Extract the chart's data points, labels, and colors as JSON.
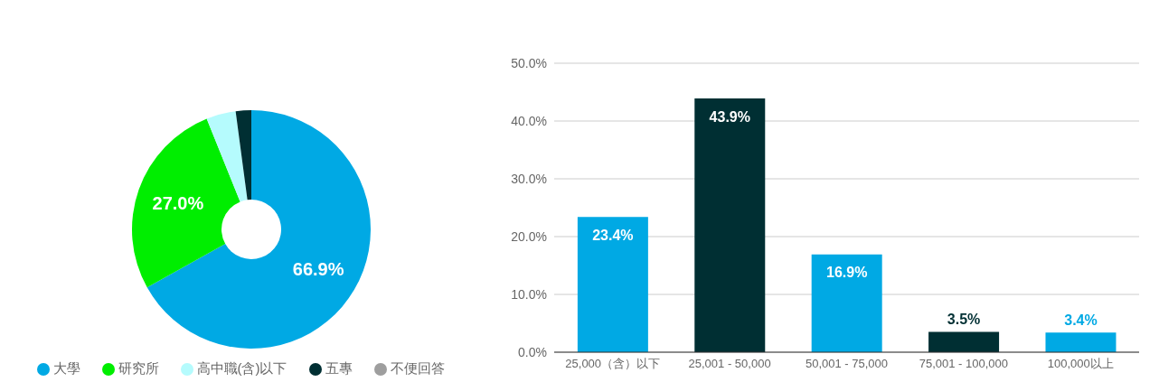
{
  "chart_data": [
    {
      "type": "donut",
      "categories": [
        "大學",
        "研究所",
        "高中職(含)以下",
        "五專",
        "不便回答"
      ],
      "values": [
        66.9,
        27.0,
        4.0,
        2.1,
        0
      ],
      "colors": [
        "#00a9e4",
        "#00ee00",
        "#b5fbfd",
        "#002f33",
        "#9e9e9e"
      ],
      "value_labels": [
        "66.9%",
        "27.0%",
        null,
        null,
        null
      ],
      "legend": "bottom"
    },
    {
      "type": "bar",
      "categories": [
        "25,000（含）以下",
        "25,001 - 50,000",
        "50,001 - 75,000",
        "75,001 - 100,000",
        "100,000以上"
      ],
      "values": [
        23.4,
        43.9,
        16.9,
        3.5,
        3.4
      ],
      "colors": [
        "#00a9e4",
        "#002f33",
        "#00a9e4",
        "#002f33",
        "#00a9e4"
      ],
      "value_labels": [
        "23.4%",
        "43.9%",
        "16.9%",
        "3.5%",
        "3.4%"
      ],
      "ylim": [
        0,
        50
      ],
      "yticks": [
        {
          "value": 0,
          "label": "0.0%"
        },
        {
          "value": 10,
          "label": "10.0%"
        },
        {
          "value": 20,
          "label": "20.0%"
        },
        {
          "value": 30,
          "label": "30.0%"
        },
        {
          "value": 40,
          "label": "40.0%"
        },
        {
          "value": 50,
          "label": "50.0%"
        }
      ],
      "grid": "y"
    }
  ]
}
